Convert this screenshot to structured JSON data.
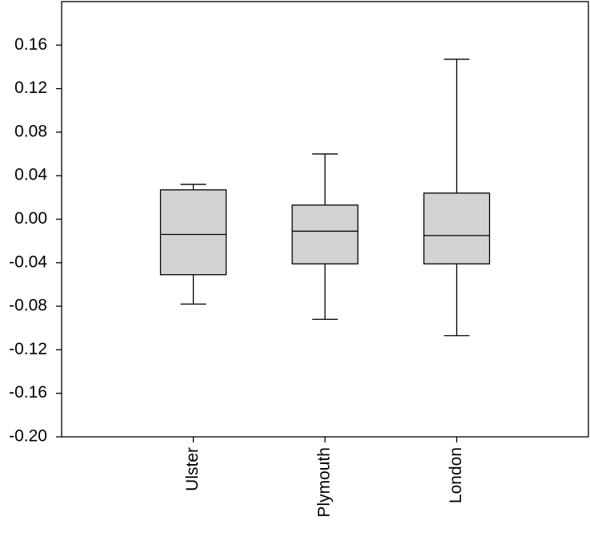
{
  "chart_data": {
    "type": "box",
    "categories": [
      "Ulster",
      "Plymouth",
      "London"
    ],
    "whisker_low": [
      -0.078,
      -0.092,
      -0.107
    ],
    "q1": [
      -0.051,
      -0.041,
      -0.041
    ],
    "median": [
      -0.014,
      -0.011,
      -0.015
    ],
    "q3": [
      0.027,
      0.013,
      0.024
    ],
    "whisker_high": [
      0.032,
      0.06,
      0.147
    ],
    "color": "#d3d3d3",
    "ylim": [
      -0.2,
      0.2
    ],
    "yticks": [
      0.16,
      0.12,
      0.08,
      0.04,
      {
        "value": 0,
        "label": "0.00"
      },
      -0.04,
      -0.08,
      -0.12,
      -0.16,
      {
        "value": -0.2,
        "label": "-0.20"
      }
    ]
  }
}
